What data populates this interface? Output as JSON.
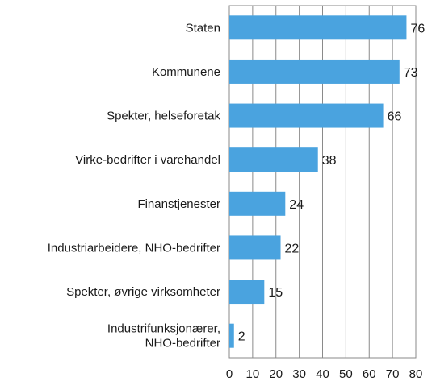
{
  "chart_data": {
    "type": "bar",
    "orientation": "horizontal",
    "categories": [
      [
        "Staten"
      ],
      [
        "Kommunene"
      ],
      [
        "Spekter, helseforetak"
      ],
      [
        "Virke-bedrifter i varehandel"
      ],
      [
        "Finanstjenester"
      ],
      [
        "Industriarbeidere, NHO-bedrifter"
      ],
      [
        "Spekter, øvrige virksomheter"
      ],
      [
        "Industrifunksjonærer,",
        "NHO-bedrifter"
      ]
    ],
    "values": [
      76,
      73,
      66,
      38,
      24,
      22,
      15,
      2
    ],
    "xlim": [
      0,
      80
    ],
    "xticks": [
      0,
      10,
      20,
      30,
      40,
      50,
      60,
      70,
      80
    ],
    "grid": "vertical",
    "bar_color": "#4aa3df",
    "data_labels": true
  }
}
